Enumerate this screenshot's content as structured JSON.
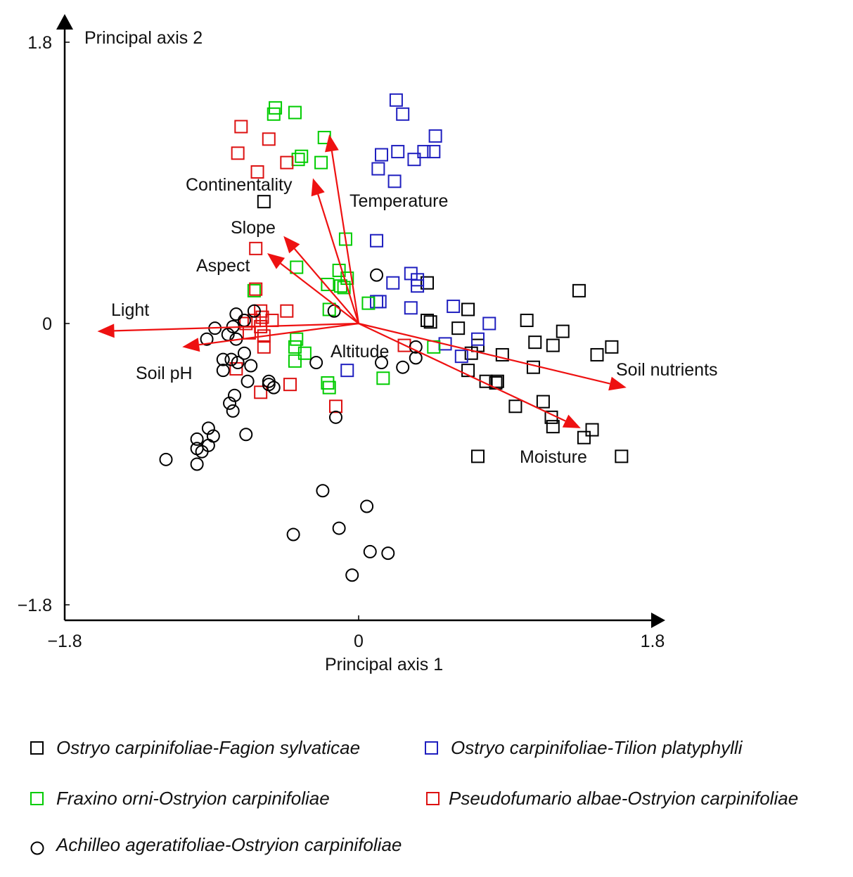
{
  "chart_data": {
    "type": "scatter",
    "title": "",
    "xlabel": "Principal axis  1",
    "ylabel": "Principal axis  2",
    "xlim": [
      -1.8,
      1.8
    ],
    "ylim": [
      -1.8,
      1.8
    ],
    "x_ticks": [
      {
        "value": -1.8,
        "label": "−1.8"
      },
      {
        "value": 0,
        "label": "0"
      },
      {
        "value": 1.8,
        "label": "1.8"
      }
    ],
    "y_ticks": [
      {
        "value": 1.8,
        "label": "1.8"
      },
      {
        "value": 0,
        "label": "0"
      },
      {
        "value": -1.8,
        "label": "−1.8"
      }
    ],
    "grid": false,
    "legend_position": "bottom",
    "series": [
      {
        "name": "Ostryo carpinifoliae-Fagion sylvaticae",
        "marker": "square",
        "color": "#000000",
        "points": [
          [
            -0.58,
            0.78
          ],
          [
            0.42,
            0.26
          ],
          [
            0.44,
            0.01
          ],
          [
            0.61,
            -0.03
          ],
          [
            0.67,
            0.09
          ],
          [
            0.69,
            -0.19
          ],
          [
            0.73,
            -0.14
          ],
          [
            0.67,
            -0.3
          ],
          [
            0.84,
            -0.38
          ],
          [
            0.78,
            -0.37
          ],
          [
            0.85,
            -0.37
          ],
          [
            0.88,
            -0.2
          ],
          [
            0.96,
            -0.53
          ],
          [
            1.03,
            0.02
          ],
          [
            1.08,
            -0.12
          ],
          [
            1.07,
            -0.28
          ],
          [
            1.13,
            -0.5
          ],
          [
            1.18,
            -0.6
          ],
          [
            1.19,
            -0.66
          ],
          [
            1.19,
            -0.14
          ],
          [
            1.25,
            -0.05
          ],
          [
            1.35,
            0.21
          ],
          [
            1.38,
            -0.73
          ],
          [
            1.43,
            -0.68
          ],
          [
            1.46,
            -0.2
          ],
          [
            1.55,
            -0.15
          ],
          [
            1.61,
            -0.85
          ],
          [
            0.73,
            -0.85
          ],
          [
            0.42,
            0.02
          ],
          [
            0.67,
            0.09
          ]
        ]
      },
      {
        "name": "Ostryo carpinifoliae-Tilion platyphylli",
        "marker": "square",
        "color": "#1f1fbf",
        "points": [
          [
            0.23,
            1.43
          ],
          [
            0.27,
            1.34
          ],
          [
            0.47,
            1.2
          ],
          [
            0.46,
            1.1
          ],
          [
            0.4,
            1.1
          ],
          [
            0.24,
            1.1
          ],
          [
            0.14,
            1.08
          ],
          [
            0.34,
            1.05
          ],
          [
            0.12,
            0.99
          ],
          [
            0.22,
            0.91
          ],
          [
            0.11,
            0.53
          ],
          [
            0.32,
            0.32
          ],
          [
            0.36,
            0.28
          ],
          [
            0.36,
            0.24
          ],
          [
            0.21,
            0.26
          ],
          [
            0.13,
            0.14
          ],
          [
            0.11,
            0.14
          ],
          [
            0.32,
            0.1
          ],
          [
            0.58,
            0.11
          ],
          [
            0.8,
            0.0
          ],
          [
            0.73,
            -0.1
          ],
          [
            0.53,
            -0.13
          ],
          [
            0.63,
            -0.21
          ],
          [
            -0.07,
            -0.3
          ]
        ]
      },
      {
        "name": "Fraxino orni-Ostryion carpinifoliae",
        "marker": "square",
        "color": "#00cc00",
        "points": [
          [
            -0.51,
            1.38
          ],
          [
            -0.52,
            1.34
          ],
          [
            -0.39,
            1.35
          ],
          [
            -0.21,
            1.19
          ],
          [
            -0.35,
            1.07
          ],
          [
            -0.37,
            1.05
          ],
          [
            -0.23,
            1.03
          ],
          [
            -0.08,
            0.54
          ],
          [
            -0.38,
            0.36
          ],
          [
            -0.12,
            0.34
          ],
          [
            -0.07,
            0.29
          ],
          [
            -0.19,
            0.25
          ],
          [
            -0.11,
            0.24
          ],
          [
            -0.09,
            0.23
          ],
          [
            -0.64,
            0.21
          ],
          [
            0.06,
            0.13
          ],
          [
            -0.18,
            0.09
          ],
          [
            -0.38,
            -0.1
          ],
          [
            -0.39,
            -0.15
          ],
          [
            -0.33,
            -0.19
          ],
          [
            -0.39,
            -0.24
          ],
          [
            -0.19,
            -0.38
          ],
          [
            -0.18,
            -0.41
          ],
          [
            0.15,
            -0.35
          ],
          [
            0.46,
            -0.15
          ]
        ]
      },
      {
        "name": "Pseudofumario albae-Ostryion carpinifoliae",
        "marker": "square",
        "color": "#dd1111",
        "points": [
          [
            -0.72,
            1.26
          ],
          [
            -0.55,
            1.18
          ],
          [
            -0.74,
            1.09
          ],
          [
            -0.44,
            1.03
          ],
          [
            -0.62,
            0.97
          ],
          [
            -0.63,
            0.48
          ],
          [
            -0.63,
            0.22
          ],
          [
            -0.44,
            0.08
          ],
          [
            -0.6,
            0.08
          ],
          [
            -0.59,
            0.04
          ],
          [
            -0.53,
            0.02
          ],
          [
            -0.64,
            0.02
          ],
          [
            -0.69,
            0.0
          ],
          [
            -0.6,
            -0.02
          ],
          [
            -0.58,
            -0.08
          ],
          [
            -0.67,
            -0.06
          ],
          [
            -0.58,
            -0.15
          ],
          [
            -0.75,
            -0.29
          ],
          [
            -0.42,
            -0.39
          ],
          [
            -0.6,
            -0.44
          ],
          [
            -0.14,
            -0.53
          ],
          [
            0.28,
            -0.14
          ]
        ]
      },
      {
        "name": "Achilleo ageratifoliae-Ostryion carpinifoliae",
        "marker": "circle",
        "color": "#000000",
        "points": [
          [
            0.11,
            0.31
          ],
          [
            -0.64,
            0.08
          ],
          [
            -0.77,
            -0.02
          ],
          [
            -0.88,
            -0.03
          ],
          [
            -0.7,
            0.02
          ],
          [
            -0.75,
            -0.1
          ],
          [
            -0.8,
            -0.07
          ],
          [
            -0.93,
            -0.1
          ],
          [
            -0.83,
            -0.23
          ],
          [
            -0.78,
            -0.23
          ],
          [
            -0.7,
            -0.19
          ],
          [
            -0.74,
            -0.25
          ],
          [
            -0.83,
            -0.3
          ],
          [
            -0.66,
            -0.27
          ],
          [
            -0.55,
            -0.37
          ],
          [
            -0.68,
            -0.37
          ],
          [
            -0.76,
            -0.46
          ],
          [
            -0.55,
            -0.39
          ],
          [
            -0.52,
            -0.41
          ],
          [
            -0.77,
            -0.56
          ],
          [
            -0.79,
            -0.51
          ],
          [
            -0.92,
            -0.67
          ],
          [
            -0.89,
            -0.72
          ],
          [
            -0.69,
            -0.71
          ],
          [
            -0.99,
            -0.74
          ],
          [
            -0.96,
            -0.82
          ],
          [
            -0.99,
            -0.8
          ],
          [
            -0.92,
            -0.78
          ],
          [
            -1.18,
            -0.87
          ],
          [
            -0.99,
            -0.9
          ],
          [
            -0.26,
            -0.25
          ],
          [
            -0.14,
            -0.6
          ],
          [
            -0.15,
            0.08
          ],
          [
            0.14,
            -0.25
          ],
          [
            0.27,
            -0.28
          ],
          [
            0.35,
            -0.22
          ],
          [
            0.35,
            -0.15
          ],
          [
            -0.22,
            -1.07
          ],
          [
            0.05,
            -1.17
          ],
          [
            -0.4,
            -1.35
          ],
          [
            -0.12,
            -1.31
          ],
          [
            0.07,
            -1.46
          ],
          [
            0.18,
            -1.47
          ],
          [
            -0.04,
            -1.61
          ],
          [
            -0.75,
            0.06
          ]
        ]
      }
    ],
    "vectors": [
      {
        "name": "Temperature",
        "x": -0.18,
        "y": 1.21
      },
      {
        "name": "Continentality",
        "x": -0.28,
        "y": 0.93
      },
      {
        "name": "Slope",
        "x": -0.46,
        "y": 0.56
      },
      {
        "name": "Aspect",
        "x": -0.56,
        "y": 0.45
      },
      {
        "name": "Light",
        "x": -1.6,
        "y": -0.05
      },
      {
        "name": "Soil pH",
        "x": -1.08,
        "y": -0.15
      },
      {
        "name": "Altitude",
        "x": 0.0,
        "y": 0.0
      },
      {
        "name": "Soil nutrients",
        "x": 1.64,
        "y": -0.41
      },
      {
        "name": "Moisture",
        "x": 1.36,
        "y": -0.67
      }
    ],
    "vector_color": "#ee1111"
  }
}
